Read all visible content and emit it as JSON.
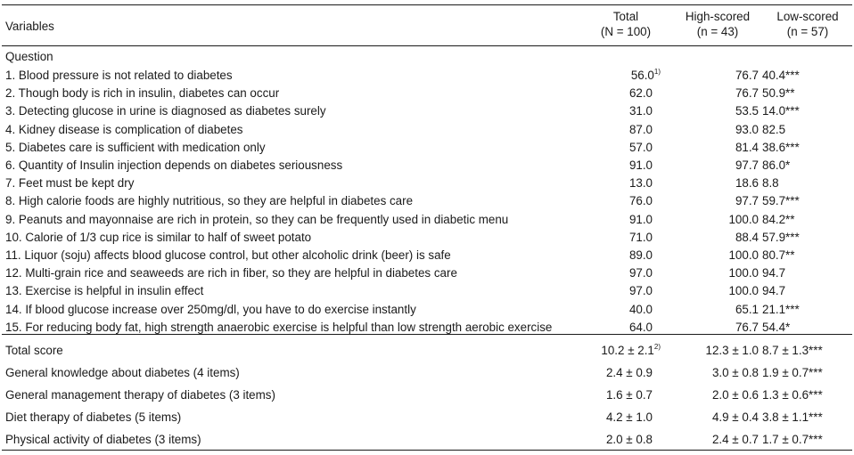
{
  "header": {
    "variables": "Variables",
    "total_line1": "Total",
    "total_line2": "(N = 100)",
    "high_line1": "High-scored",
    "high_line2": "(n = 43)",
    "low_line1": "Low-scored",
    "low_line2": "(n = 57)"
  },
  "section_label": "Question",
  "questions": [
    {
      "label": "1. Blood pressure is not related to diabetes",
      "total": "56.0",
      "total_sup": "1)",
      "high": "76.7",
      "low": "40.4***"
    },
    {
      "label": "2. Though body is rich in insulin, diabetes can occur",
      "total": "62.0",
      "high": "76.7",
      "low": "50.9**"
    },
    {
      "label": "3. Detecting glucose in urine is diagnosed as diabetes surely",
      "total": "31.0",
      "high": "53.5",
      "low": "14.0***"
    },
    {
      "label": "4. Kidney disease is complication of diabetes",
      "total": "87.0",
      "high": "93.0",
      "low": "82.5"
    },
    {
      "label": "5. Diabetes care is sufficient with medication only",
      "total": "57.0",
      "high": "81.4",
      "low": "38.6***"
    },
    {
      "label": "6. Quantity of Insulin injection depends on diabetes seriousness",
      "total": "91.0",
      "high": "97.7",
      "low": "86.0*"
    },
    {
      "label": "7. Feet must be kept dry",
      "total": "13.0",
      "high": "18.6",
      "low": "8.8"
    },
    {
      "label": "8. High calorie foods are highly nutritious, so they are helpful in diabetes care",
      "total": "76.0",
      "high": "97.7",
      "low": "59.7***"
    },
    {
      "label": "9. Peanuts and mayonnaise are rich in protein, so they can be frequently used in diabetic menu",
      "total": "91.0",
      "high": "100.0",
      "low": "84.2**"
    },
    {
      "label": "10. Calorie of 1/3 cup rice is similar to half of sweet potato",
      "total": "71.0",
      "high": "88.4",
      "low": "57.9***"
    },
    {
      "label": "11. Liquor (soju) affects blood glucose control, but other alcoholic drink (beer) is safe",
      "total": "89.0",
      "high": "100.0",
      "low": "80.7**"
    },
    {
      "label": "12. Multi-grain rice and seaweeds are rich in fiber, so they are helpful in diabetes care",
      "total": "97.0",
      "high": "100.0",
      "low": "94.7"
    },
    {
      "label": "13. Exercise is helpful in insulin effect",
      "total": "97.0",
      "high": "100.0",
      "low": "94.7"
    },
    {
      "label": "14. If blood glucose increase over 250mg/dl, you have to do exercise instantly",
      "total": "40.0",
      "high": "65.1",
      "low": "21.1***"
    },
    {
      "label": "15. For reducing body fat, high strength anaerobic exercise is helpful than low strength aerobic exercise",
      "total": "64.0",
      "high": "76.7",
      "low": "54.4*"
    }
  ],
  "scores": [
    {
      "label": "Total score",
      "total": "10.2 ± 2.1",
      "total_sup": "2)",
      "high": "12.3 ± 1.0",
      "low": "8.7 ± 1.3***"
    },
    {
      "label": "General knowledge about diabetes (4 items)",
      "total": "2.4 ± 0.9",
      "high": "3.0 ± 0.8",
      "low": "1.9 ± 0.7***"
    },
    {
      "label": "General management therapy of diabetes (3 items)",
      "total": "1.6 ± 0.7",
      "high": "2.0 ± 0.6",
      "low": "1.3 ± 0.6***"
    },
    {
      "label": "Diet therapy of diabetes (5 items)",
      "total": "4.2 ± 1.0",
      "high": "4.9 ± 0.4",
      "low": "3.8 ± 1.1***"
    },
    {
      "label": "Physical activity of diabetes (3 items)",
      "total": "2.0 ± 0.8",
      "high": "2.4 ± 0.7",
      "low": "1.7 ± 0.7***"
    }
  ]
}
